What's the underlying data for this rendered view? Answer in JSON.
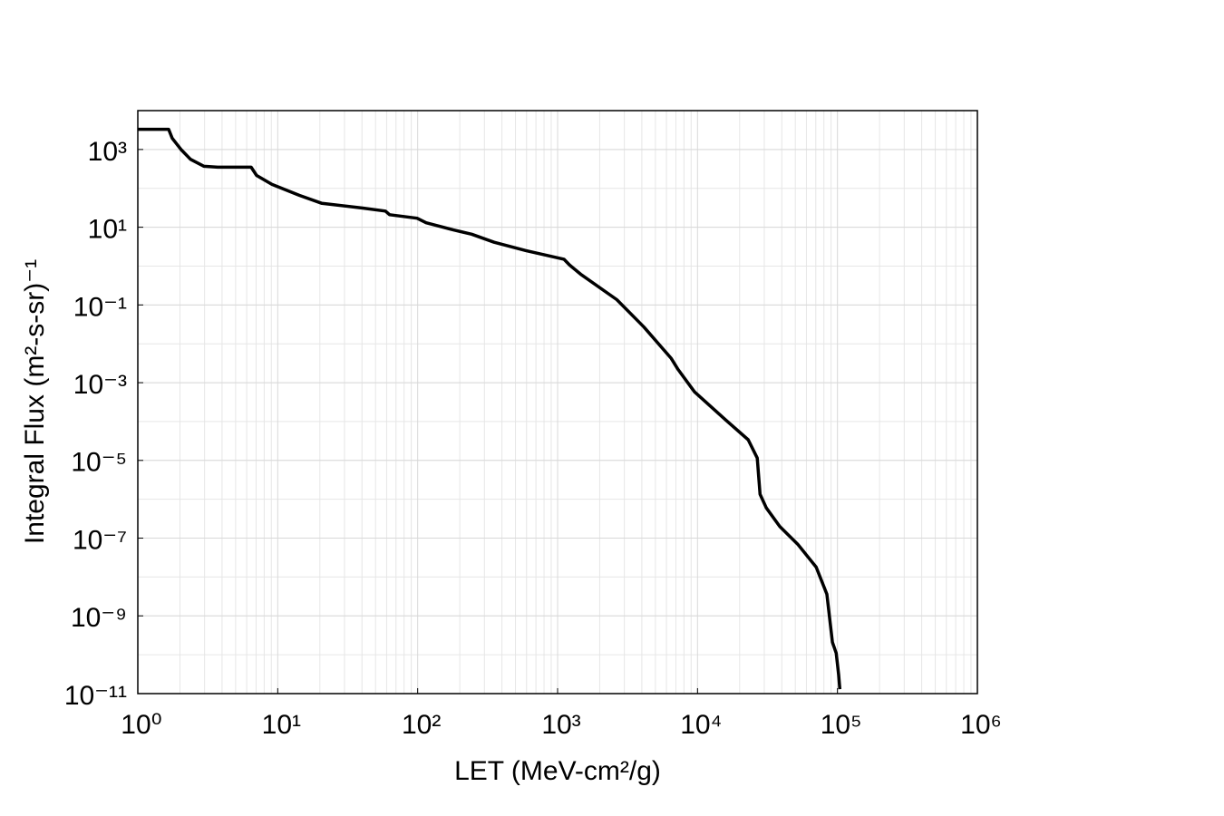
{
  "chart_data": {
    "type": "line",
    "x_label": "LET (MeV-cm²/g)",
    "y_label": "Integral Flux (m²-s-sr)⁻¹",
    "xscale": "log",
    "yscale": "log",
    "grid": true,
    "minor_grid": true,
    "xlim": [
      1,
      1000000
    ],
    "ylim": [
      1e-11,
      10000
    ],
    "xticks": [
      {
        "value": 1,
        "label": "10⁰"
      },
      {
        "value": 10,
        "label": "10¹"
      },
      {
        "value": 100,
        "label": "10²"
      },
      {
        "value": 1000,
        "label": "10³"
      },
      {
        "value": 10000,
        "label": "10⁴"
      },
      {
        "value": 100000,
        "label": "10⁵"
      },
      {
        "value": 1000000,
        "label": "10⁶"
      }
    ],
    "yticks": [
      {
        "value": 1e-11,
        "label": "10⁻¹¹"
      },
      {
        "value": 1e-09,
        "label": "10⁻⁹"
      },
      {
        "value": 1e-07,
        "label": "10⁻⁷"
      },
      {
        "value": 1e-05,
        "label": "10⁻⁵"
      },
      {
        "value": 0.001,
        "label": "10⁻³"
      },
      {
        "value": 0.1,
        "label": "10⁻¹"
      },
      {
        "value": 10,
        "label": "10¹"
      },
      {
        "value": 1000,
        "label": "10³"
      }
    ],
    "series": [
      {
        "color": "#000000",
        "x": [
          1,
          1.66,
          1.76,
          2.05,
          2.38,
          2.97,
          3.72,
          6.46,
          7.06,
          9.1,
          14.3,
          20.7,
          40.5,
          58.8,
          63,
          99,
          115,
          180,
          243,
          352,
          594,
          1110,
          1220,
          1460,
          2650,
          4140,
          6490,
          7250,
          9520,
          15900,
          23000,
          26700,
          28000,
          31000,
          38700,
          52000,
          70500,
          84000,
          92000,
          98000,
          102000,
          104000
        ],
        "values": [
          3300,
          3300,
          1950,
          970,
          560,
          370,
          350,
          350,
          215,
          126,
          66,
          41,
          31,
          26,
          21,
          17,
          13,
          8.5,
          6.6,
          4.1,
          2.5,
          1.5,
          1.06,
          0.62,
          0.137,
          0.027,
          0.0042,
          0.0022,
          0.00058,
          0.00011,
          3.4e-05,
          1.15e-05,
          1.35e-06,
          6e-07,
          2e-07,
          7e-08,
          1.8e-08,
          3.6e-09,
          2.1e-10,
          1.1e-10,
          3e-11,
          1.3e-11
        ]
      }
    ]
  }
}
